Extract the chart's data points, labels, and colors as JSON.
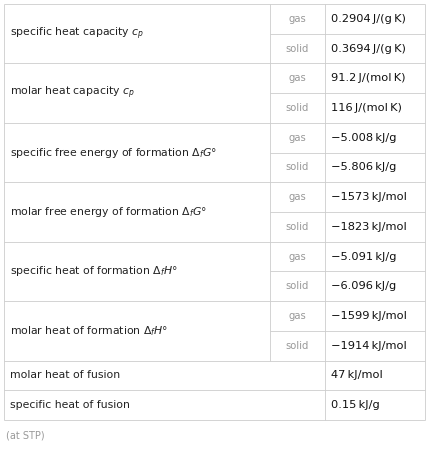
{
  "rows": [
    {
      "property": "specific heat capacity $c_p$",
      "states": [
        {
          "state": "gas",
          "value": "0.2904 J/(g K)"
        },
        {
          "state": "solid",
          "value": "0.3694 J/(g K)"
        }
      ]
    },
    {
      "property": "molar heat capacity $c_p$",
      "states": [
        {
          "state": "gas",
          "value": "91.2 J/(mol K)"
        },
        {
          "state": "solid",
          "value": "116 J/(mol K)"
        }
      ]
    },
    {
      "property": "specific free energy of formation $\\Delta_f G°$",
      "states": [
        {
          "state": "gas",
          "value": "−5.008 kJ/g"
        },
        {
          "state": "solid",
          "value": "−5.806 kJ/g"
        }
      ]
    },
    {
      "property": "molar free energy of formation $\\Delta_f G°$",
      "states": [
        {
          "state": "gas",
          "value": "−1573 kJ/mol"
        },
        {
          "state": "solid",
          "value": "−1823 kJ/mol"
        }
      ]
    },
    {
      "property": "specific heat of formation $\\Delta_f H°$",
      "states": [
        {
          "state": "gas",
          "value": "−5.091 kJ/g"
        },
        {
          "state": "solid",
          "value": "−6.096 kJ/g"
        }
      ]
    },
    {
      "property": "molar heat of formation $\\Delta_f H°$",
      "states": [
        {
          "state": "gas",
          "value": "−1599 kJ/mol"
        },
        {
          "state": "solid",
          "value": "−1914 kJ/mol"
        }
      ]
    },
    {
      "property": "molar heat of fusion",
      "single_value": "47 kJ/mol"
    },
    {
      "property": "specific heat of fusion",
      "single_value": "0.15 kJ/g"
    }
  ],
  "footnote": "(at STP)",
  "bg_color": "#ffffff",
  "line_color": "#cccccc",
  "state_color": "#999999",
  "value_color": "#111111",
  "property_color": "#222222"
}
